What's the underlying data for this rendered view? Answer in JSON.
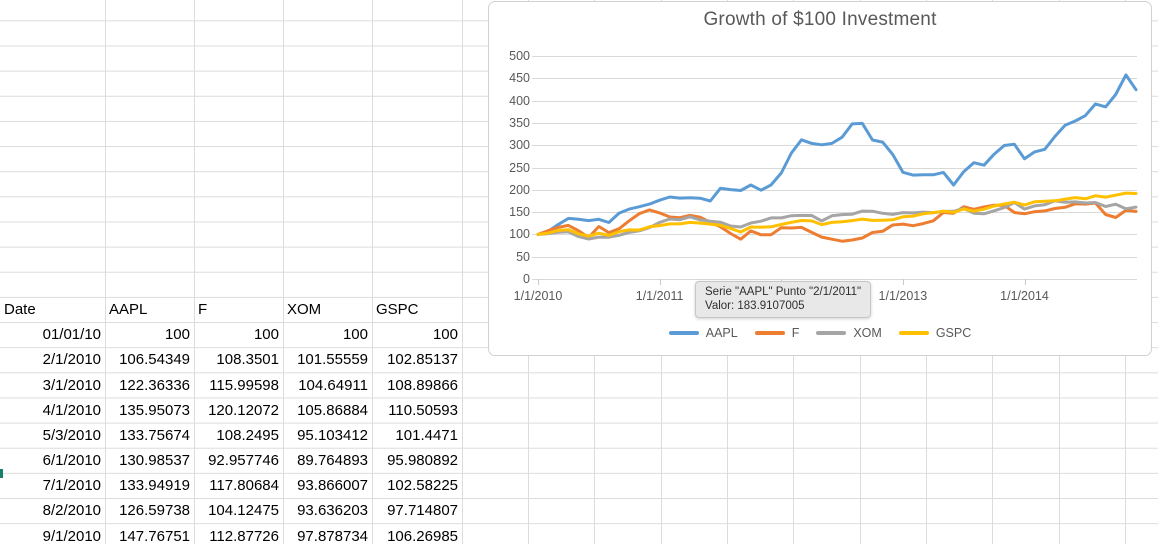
{
  "sheet": {
    "table": {
      "headers": [
        "Date",
        "AAPL",
        "F",
        "XOM",
        "GSPC"
      ],
      "rows": [
        [
          "01/01/10",
          "100",
          "100",
          "100",
          "100"
        ],
        [
          "2/1/2010",
          "106.54349",
          "108.3501",
          "101.55559",
          "102.85137"
        ],
        [
          "3/1/2010",
          "122.36336",
          "115.99598",
          "104.64911",
          "108.89866"
        ],
        [
          "4/1/2010",
          "135.95073",
          "120.12072",
          "105.86884",
          "110.50593"
        ],
        [
          "5/3/2010",
          "133.75674",
          "108.2495",
          "95.103412",
          "101.4471"
        ],
        [
          "6/1/2010",
          "130.98537",
          "92.957746",
          "89.764893",
          "95.980892"
        ],
        [
          "7/1/2010",
          "133.94919",
          "117.80684",
          "93.866007",
          "102.58225"
        ],
        [
          "8/2/2010",
          "126.59738",
          "104.12475",
          "93.636203",
          "97.714807"
        ],
        [
          "9/1/2010",
          "147.76751",
          "112.87726",
          "97.878734",
          "106.26985"
        ]
      ]
    }
  },
  "chart": {
    "title": "Growth of $100 Investment",
    "tooltip": {
      "line1": "Serie \"AAPL\" Punto \"2/1/2011\"",
      "line2": "Valor: 183.9107005"
    }
  },
  "chart_data": {
    "type": "line",
    "title": "Growth of $100 Investment",
    "grid": "horizontal",
    "legend_position": "bottom",
    "ylim": [
      0,
      500
    ],
    "y_step": 50,
    "x_tick_labels": [
      "1/1/2010",
      "1/1/2011",
      "1/1/2012",
      "1/1/2013",
      "1/1/2014"
    ],
    "x": [
      "1/1/2010",
      "2/1/2010",
      "3/1/2010",
      "4/1/2010",
      "5/3/2010",
      "6/1/2010",
      "7/1/2010",
      "8/2/2010",
      "9/1/2010",
      "10/1/2010",
      "11/1/2010",
      "12/1/2010",
      "1/1/2011",
      "2/1/2011",
      "3/1/2011",
      "4/1/2011",
      "5/1/2011",
      "6/1/2011",
      "7/1/2011",
      "8/1/2011",
      "9/1/2011",
      "10/1/2011",
      "11/1/2011",
      "12/1/2011",
      "1/1/2012",
      "2/1/2012",
      "3/1/2012",
      "4/1/2012",
      "5/1/2012",
      "6/1/2012",
      "7/1/2012",
      "8/1/2012",
      "9/1/2012",
      "10/1/2012",
      "11/1/2012",
      "12/1/2012",
      "1/1/2013",
      "2/1/2013",
      "3/1/2013",
      "4/1/2013",
      "5/1/2013",
      "6/1/2013",
      "7/1/2013",
      "8/1/2013",
      "9/1/2013",
      "10/1/2013",
      "11/1/2013",
      "12/1/2013",
      "1/1/2014",
      "2/1/2014",
      "3/1/2014",
      "4/1/2014",
      "5/1/2014",
      "6/1/2014",
      "7/1/2014",
      "8/1/2014",
      "9/1/2014",
      "10/1/2014",
      "11/1/2014",
      "12/1/2014"
    ],
    "highlighted_point": {
      "series": "AAPL",
      "x": "2/1/2011",
      "value": 183.9107005
    },
    "series": [
      {
        "name": "AAPL",
        "color": "#5B9BD5",
        "values": [
          100,
          106.54,
          122.36,
          135.95,
          133.76,
          130.99,
          133.95,
          126.6,
          147.77,
          156.7,
          162,
          167.9,
          176.7,
          183.91,
          181.5,
          182.3,
          181.1,
          174.8,
          203.3,
          200.4,
          198.5,
          210.8,
          199,
          210.9,
          237.7,
          282.4,
          312.2,
          304.1,
          300.8,
          304.1,
          318,
          347.8,
          348.8,
          311.6,
          306.9,
          279.4,
          239.2,
          233,
          233.7,
          233.7,
          239,
          210.8,
          240.5,
          260.8,
          255.2,
          279.8,
          299.3,
          302,
          269.6,
          285,
          290.7,
          319.5,
          344.8,
          354.3,
          366.2,
          392.5,
          385.8,
          413.7,
          457.7,
          424.5
        ]
      },
      {
        "name": "F",
        "color": "#ED7D31",
        "values": [
          100,
          108.35,
          116,
          120.12,
          108.25,
          92.96,
          117.81,
          104.12,
          112.88,
          130.6,
          146.7,
          154.9,
          148.2,
          139.1,
          137.5,
          142.7,
          138.6,
          127.2,
          117.3,
          102.1,
          89.2,
          107.8,
          99.2,
          99.3,
          115.1,
          114.4,
          115.6,
          104.4,
          94,
          89.3,
          84.7,
          87.4,
          91.9,
          104.2,
          106.9,
          121,
          123,
          119.6,
          124.2,
          130.5,
          149,
          147.3,
          162,
          156.2,
          161.5,
          165.5,
          165,
          149.2,
          146.3,
          151,
          152.6,
          158,
          160.7,
          168.6,
          168,
          170.3,
          144.7,
          138,
          153.8,
          151.6
        ]
      },
      {
        "name": "XOM",
        "color": "#A5A5A5",
        "values": [
          100,
          101.56,
          104.65,
          105.87,
          95.1,
          89.76,
          93.87,
          93.64,
          97.88,
          104.5,
          108,
          115.2,
          127,
          134.6,
          133,
          139.5,
          132.6,
          129.6,
          127.4,
          118.9,
          116.5,
          125.6,
          129.7,
          136.9,
          137,
          141.9,
          142.6,
          142.3,
          130.3,
          141.6,
          144.3,
          145.4,
          152.2,
          152.1,
          147.3,
          144.9,
          148.9,
          148.3,
          150.1,
          148.6,
          151.6,
          151.9,
          158,
          147.6,
          146.2,
          153,
          160.1,
          171.5,
          156.8,
          163.9,
          166.6,
          175,
          172.3,
          172.9,
          170.3,
          171.6,
          162.6,
          167.7,
          157.5,
          161.3
        ]
      },
      {
        "name": "GSPC",
        "color": "#FFC000",
        "values": [
          100,
          102.85,
          108.9,
          110.51,
          101.45,
          95.98,
          102.58,
          97.71,
          106.27,
          110.2,
          109.9,
          117.1,
          119.8,
          123.6,
          123.5,
          127,
          125.3,
          123,
          120.3,
          113.5,
          105.4,
          116.7,
          116.1,
          117.1,
          122.2,
          127.2,
          131.2,
          130.2,
          122,
          126.9,
          128.4,
          131,
          134.2,
          131.5,
          131.9,
          132.8,
          139.5,
          141.1,
          146.1,
          148.8,
          151.9,
          149.6,
          157,
          152.1,
          156.6,
          163.6,
          168.2,
          172.1,
          166,
          173.2,
          174.4,
          175.4,
          179.1,
          182.5,
          179.8,
          186.6,
          183.7,
          187.9,
          192.5,
          191.7
        ]
      }
    ]
  }
}
